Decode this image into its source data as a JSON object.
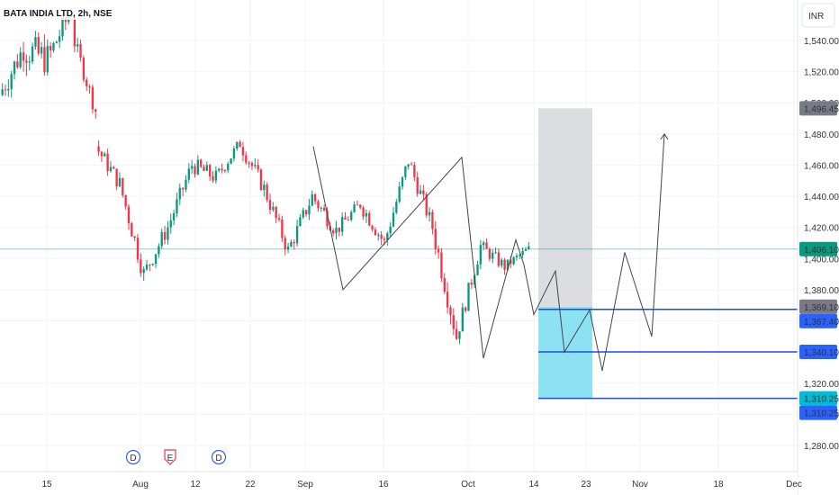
{
  "header": {
    "symbol_title": "BATA INDIA LTD, 2h, NSE",
    "currency_button": "INR"
  },
  "colors": {
    "up": "#089981",
    "down": "#f23645",
    "grid": "#f0f3fa",
    "axis_text": "#333333",
    "current_price_line": "#089981",
    "level_line": "#1e4ae8",
    "target_box": "#d6d7da",
    "stop_box": "#7fdfee",
    "drawing_line": "#444444"
  },
  "chart_data": {
    "type": "candlestick",
    "y_ticks": [
      "1,540.00",
      "1,520.00",
      "1,500.00",
      "1,480.00",
      "1,460.00",
      "1,440.00",
      "1,420.00",
      "1,400.00",
      "1,380.00",
      "1,360.00",
      "1,320.00",
      "1,300.00",
      "1,280.00"
    ],
    "x_ticks": [
      "15",
      "Aug",
      "12",
      "22",
      "Sep",
      "16",
      "Oct",
      "14",
      "23",
      "Nov",
      "18",
      "Dec"
    ],
    "price_tags": [
      {
        "label": "1,496.45",
        "value": 1496.45,
        "style": "gray"
      },
      {
        "label": "1,406.10",
        "value": 1406.1,
        "style": "green"
      },
      {
        "label": "1,369.10",
        "value": 1369.1,
        "style": "gray"
      },
      {
        "label": "1,367.40",
        "value": 1367.4,
        "style": "blue"
      },
      {
        "label": "1,340.10",
        "value": 1340.1,
        "style": "blue"
      },
      {
        "label": "1,310.25",
        "value": 1310.25,
        "style": "cyan"
      },
      {
        "label": "1,310.25",
        "value": 1310.25,
        "style": "blue"
      }
    ],
    "event_markers": [
      {
        "label": "D",
        "kind": "dividend"
      },
      {
        "label": "E",
        "kind": "earnings"
      },
      {
        "label": "D",
        "kind": "dividend"
      }
    ],
    "current_price": 1406.1,
    "horizontal_levels": [
      1367.4,
      1340.1,
      1310.25
    ],
    "target_zone": {
      "top": 1496.45,
      "bottom": 1369.1
    },
    "stop_zone": {
      "top": 1369.1,
      "bottom": 1310.25
    },
    "wave_drawing_prices": [
      1472,
      1380,
      1465,
      1336,
      1412,
      1396,
      1364,
      1392,
      1340,
      1367,
      1328,
      1404,
      1350,
      1480
    ],
    "projection_arrow_end": 1480,
    "price_segments": [
      {
        "open": 1505,
        "close": 1535,
        "vol": 8
      },
      {
        "open": 1535,
        "close": 1528,
        "vol": 10
      },
      {
        "open": 1528,
        "close": 1560,
        "vol": 7
      },
      {
        "open": 1545,
        "close": 1495,
        "vol": 5
      },
      {
        "open": 1472,
        "close": 1448,
        "vol": 5
      },
      {
        "open": 1448,
        "close": 1390,
        "vol": 6
      },
      {
        "open": 1390,
        "close": 1420,
        "vol": 5
      },
      {
        "open": 1420,
        "close": 1460,
        "vol": 5
      },
      {
        "open": 1460,
        "close": 1452,
        "vol": 5
      },
      {
        "open": 1452,
        "close": 1474,
        "vol": 4
      },
      {
        "open": 1474,
        "close": 1445,
        "vol": 5
      },
      {
        "open": 1445,
        "close": 1405,
        "vol": 5
      },
      {
        "open": 1405,
        "close": 1440,
        "vol": 5
      },
      {
        "open": 1440,
        "close": 1418,
        "vol": 5
      },
      {
        "open": 1418,
        "close": 1435,
        "vol": 4
      },
      {
        "open": 1435,
        "close": 1410,
        "vol": 5
      },
      {
        "open": 1410,
        "close": 1463,
        "vol": 5
      },
      {
        "open": 1463,
        "close": 1420,
        "vol": 5
      },
      {
        "open": 1420,
        "close": 1350,
        "vol": 7
      },
      {
        "open": 1350,
        "close": 1408,
        "vol": 5
      },
      {
        "open": 1408,
        "close": 1395,
        "vol": 4
      },
      {
        "open": 1395,
        "close": 1406,
        "vol": 3
      }
    ]
  }
}
